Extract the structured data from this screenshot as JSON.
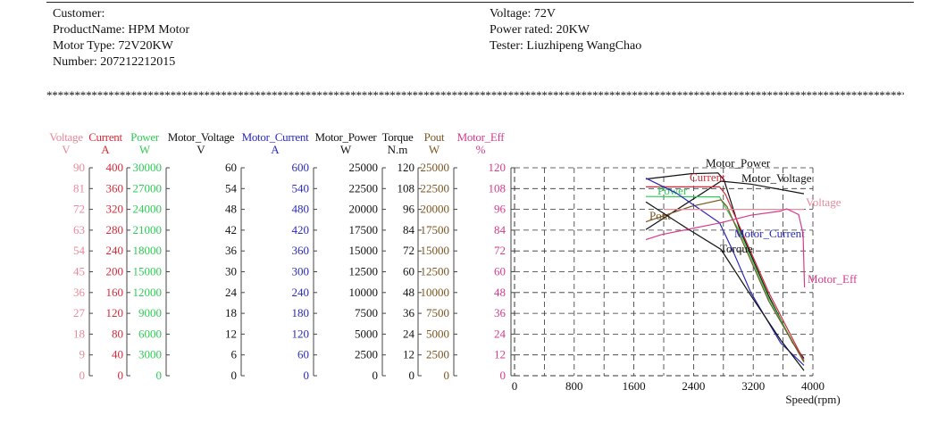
{
  "header": {
    "left": [
      "Customer:",
      "ProductName: HPM Motor",
      "Motor Type: 72V20KW",
      "Number: 207212212015"
    ],
    "right": [
      "Voltage: 72V",
      "Power rated: 20KW",
      "Tester: Liuzhipeng WangChao"
    ],
    "separator": "************************************************************************************************************************************************************"
  },
  "chart_data": {
    "type": "line",
    "xlabel": "Speed(rpm)",
    "xlim": [
      0,
      4000
    ],
    "xticks": [
      0,
      800,
      1600,
      2400,
      3200,
      4000
    ],
    "grid": true,
    "axes": [
      {
        "name": "Voltage",
        "unit": "V",
        "color": "#e88a9a",
        "ticks": [
          0,
          9,
          18,
          27,
          36,
          45,
          54,
          63,
          72,
          81,
          90
        ]
      },
      {
        "name": "Current",
        "unit": "A",
        "color": "#d42a3a",
        "ticks": [
          0,
          40,
          80,
          120,
          160,
          200,
          240,
          280,
          320,
          360,
          400
        ]
      },
      {
        "name": "Power",
        "unit": "W",
        "color": "#2ecc55",
        "ticks": [
          0,
          3000,
          6000,
          9000,
          12000,
          15000,
          18000,
          21000,
          24000,
          27000,
          30000
        ]
      },
      {
        "name": "Motor_Voltage",
        "unit": "V",
        "color": "#111111",
        "ticks": [
          0,
          6,
          12,
          18,
          24,
          30,
          36,
          42,
          48,
          54,
          60
        ]
      },
      {
        "name": "Motor_Current",
        "unit": "A",
        "color": "#2a2ab8",
        "ticks": [
          0,
          60,
          120,
          180,
          240,
          300,
          360,
          420,
          480,
          540,
          600
        ]
      },
      {
        "name": "Motor_Power",
        "unit": "W",
        "color": "#111111",
        "ticks": [
          0,
          2500,
          5000,
          7500,
          10000,
          12500,
          15000,
          17500,
          20000,
          22500,
          25000
        ]
      },
      {
        "name": "Torque",
        "unit": "N.m",
        "color": "#111111",
        "ticks": [
          0,
          12,
          24,
          36,
          48,
          60,
          72,
          84,
          96,
          108,
          120
        ]
      },
      {
        "name": "Pout",
        "unit": "W",
        "color": "#7a5520",
        "ticks": [
          0,
          2500,
          5000,
          7500,
          10000,
          12500,
          15000,
          17500,
          20000,
          22500,
          25000
        ]
      },
      {
        "name": "Motor_Eff",
        "unit": "%",
        "color": "#d63b8a",
        "ticks": [
          0,
          12,
          24,
          36,
          48,
          60,
          72,
          84,
          96,
          108,
          120
        ]
      }
    ],
    "note": "series y values expressed on the Motor_Eff (0-120) scale",
    "series": [
      {
        "name": "Motor_Power",
        "color": "#111111",
        "label": "Motor_Power",
        "x": [
          1760,
          2368,
          2728,
          2808,
          3008,
          3408,
          3728,
          3880
        ],
        "y": [
          113.5,
          116.6,
          117,
          113,
          85.7,
          46,
          19,
          10
        ]
      },
      {
        "name": "Motor_Voltage",
        "color": "#111111",
        "label": "Motor_Voltage",
        "x": [
          1760,
          2768,
          3168,
          3880
        ],
        "y": [
          84.3,
          112.3,
          110.6,
          105
        ]
      },
      {
        "name": "Current",
        "color": "#d42a3a",
        "label": "Current",
        "x": [
          1760,
          2748,
          2828,
          3008,
          3408,
          3880
        ],
        "y": [
          109,
          109,
          104.6,
          87,
          48,
          8.6
        ]
      },
      {
        "name": "Power",
        "color": "#2ecc55",
        "label": "Power",
        "x": [
          1760,
          2748,
          2808,
          3008,
          3408,
          3880
        ],
        "y": [
          103.4,
          103.2,
          98.6,
          84,
          44.6,
          7.7
        ]
      },
      {
        "name": "Pout",
        "color": "#7a5520",
        "label": "Pout",
        "x": [
          1760,
          2368,
          2768,
          2848,
          3408,
          3880
        ],
        "y": [
          88.8,
          97.7,
          101.5,
          97.7,
          43,
          8
        ]
      },
      {
        "name": "Motor_Current",
        "color": "#2a2ab8",
        "label": "Motor_Current",
        "x": [
          1760,
          2168,
          2748,
          2928,
          3168,
          3568,
          3880
        ],
        "y": [
          114,
          105.4,
          88.3,
          72,
          48,
          18.9,
          6
        ]
      },
      {
        "name": "Torque",
        "color": "#111111",
        "label": "Torque",
        "x": [
          1760,
          2288,
          2768,
          3168,
          3568,
          3880
        ],
        "y": [
          100.3,
          85.7,
          72.9,
          46.3,
          20.6,
          3
        ]
      },
      {
        "name": "Voltage",
        "color": "#e88a9a",
        "label": "Voltage",
        "x": [
          2000,
          3880
        ],
        "y": [
          96,
          96
        ]
      },
      {
        "name": "Motor_Eff",
        "color": "#d63b8a",
        "label": "Motor_Eff",
        "x": [
          1760,
          1968,
          2768,
          3168,
          3568,
          3648,
          3808,
          3868,
          3888
        ],
        "y": [
          78.5,
          81.4,
          88.3,
          92.6,
          95,
          96.3,
          93,
          82,
          51
        ]
      }
    ]
  }
}
